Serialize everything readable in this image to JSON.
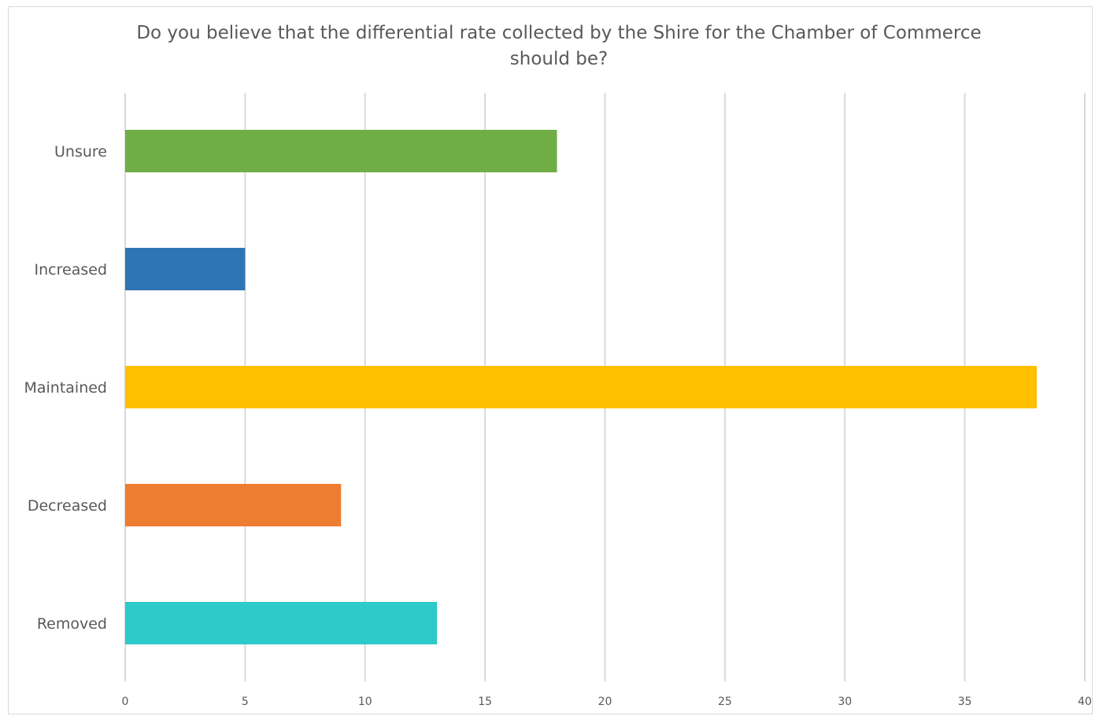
{
  "chart_data": {
    "type": "bar",
    "orientation": "horizontal",
    "title": "Do you believe that the differential rate collected by the Shire for the Chamber of Commerce should be?",
    "categories": [
      "Unsure",
      "Increased",
      "Maintained",
      "Decreased",
      "Removed"
    ],
    "values": [
      18,
      5,
      38,
      9,
      13
    ],
    "colors": [
      "#70ad47",
      "#2e75b6",
      "#ffc000",
      "#ed7d31",
      "#2ec9c9"
    ],
    "xlabel": "",
    "ylabel": "",
    "xlim": [
      0,
      40
    ],
    "xticks": [
      "0",
      "5",
      "10",
      "15",
      "20",
      "25",
      "30",
      "35",
      "40"
    ],
    "grid": "vertical",
    "legend": "none"
  }
}
